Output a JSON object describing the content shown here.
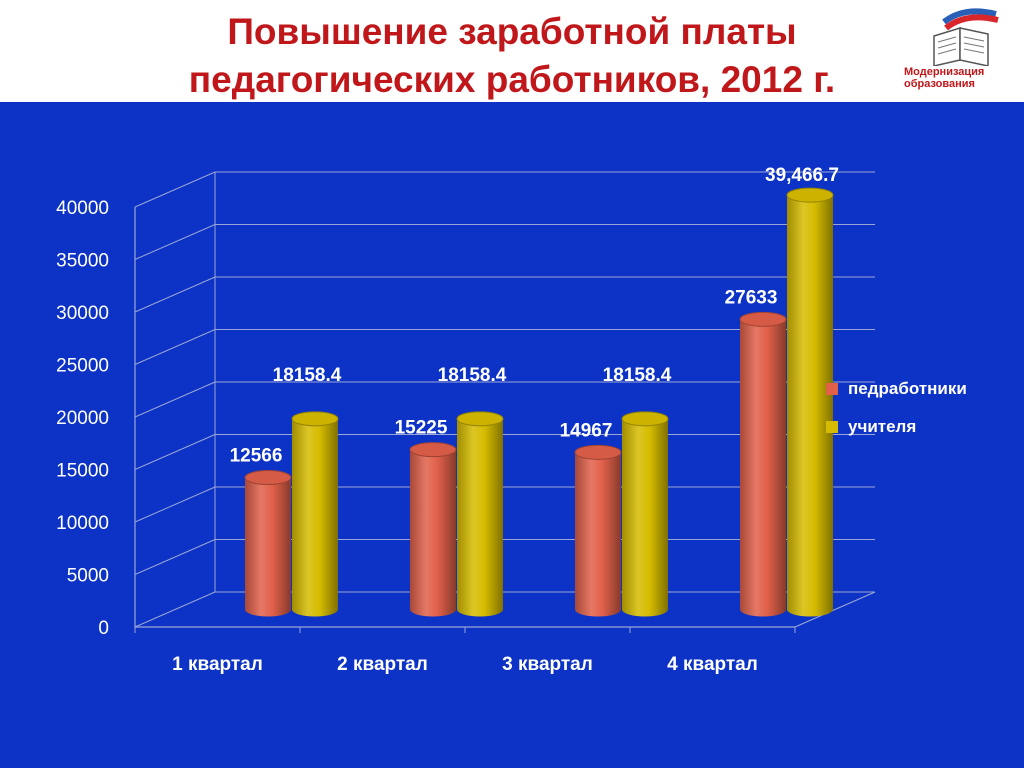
{
  "slide": {
    "title_line1": "Повышение заработной платы",
    "title_line2": "педагогических работников, 2012 г.",
    "logo": {
      "line1": "Модернизация",
      "line2": "образования",
      "icon": "open-book-icon"
    }
  },
  "colors": {
    "background": "#0c33c6",
    "title": "#c0171b",
    "series_1": "#e0604a",
    "series_2": "#d6bc00"
  },
  "chart_data": {
    "type": "bar",
    "categories": [
      "1 квартал",
      "2 квартал",
      "3 квартал",
      "4 квартал"
    ],
    "series": [
      {
        "name": "педработники",
        "values": [
          12566,
          15225,
          14967,
          27633
        ],
        "labels": [
          "12566",
          "15225",
          "14967",
          "27633"
        ]
      },
      {
        "name": "учителя",
        "values": [
          18158.4,
          18158.4,
          18158.4,
          39466.7
        ],
        "labels": [
          "18158.4",
          "18158.4",
          "18158.4",
          "39,466.7"
        ]
      }
    ],
    "yticks": [
      "0",
      "5000",
      "10000",
      "15000",
      "20000",
      "25000",
      "30000",
      "35000",
      "40000"
    ],
    "ylim": [
      0,
      40000
    ],
    "grid": true,
    "legend_position": "right",
    "style": "3d-cylinder"
  }
}
